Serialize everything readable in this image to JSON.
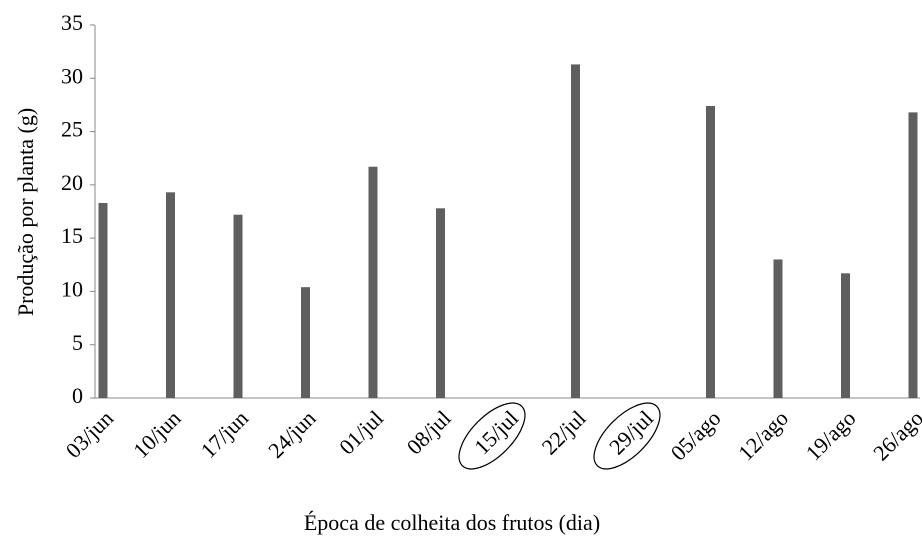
{
  "chart_data": {
    "type": "bar",
    "x_label": "Época de colheita dos frutos (dia)",
    "y_label": "Produção por planta  (g)",
    "categories": [
      "03/jun",
      "10/jun",
      "17/jun",
      "24/jun",
      "01/jul",
      "08/jul",
      "15/jul",
      "22/jul",
      "29/jul",
      "05/ago",
      "12/ago",
      "19/ago",
      "26/ago"
    ],
    "values": [
      18.3,
      19.3,
      17.2,
      10.4,
      21.7,
      17.8,
      null,
      31.3,
      null,
      27.4,
      13.0,
      11.7,
      26.8
    ],
    "color": "#5f5f5f",
    "ylim": [
      0,
      35
    ],
    "yticks": [
      0,
      5,
      10,
      15,
      20,
      25,
      30,
      35
    ],
    "grid": false
  }
}
